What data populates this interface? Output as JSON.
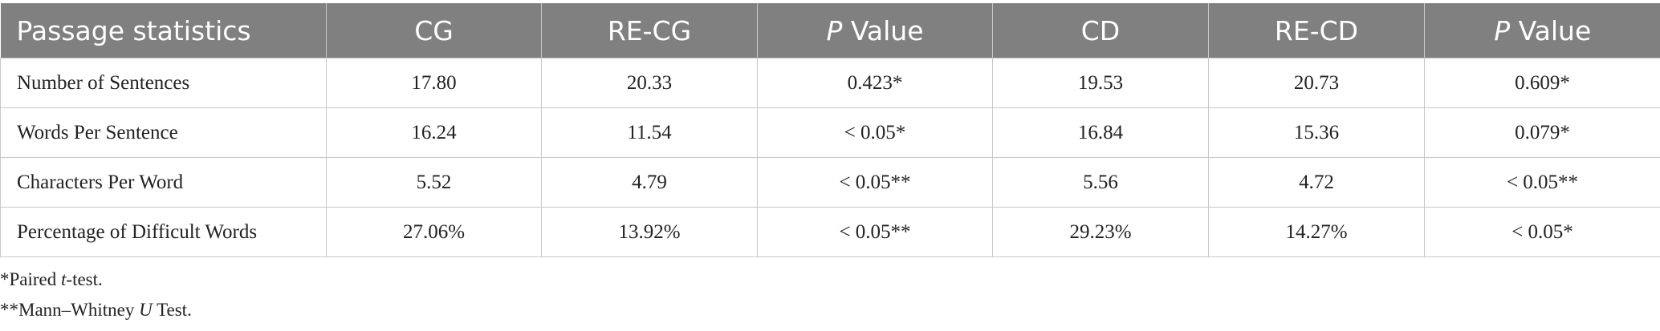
{
  "table": {
    "header": [
      "Passage statistics",
      "CG",
      "RE-CG",
      {
        "em": "P",
        "rest": "Value"
      },
      "CD",
      "RE-CD",
      {
        "em": "P",
        "rest": "Value"
      }
    ],
    "rows": [
      [
        "Number of Sentences",
        "17.80",
        "20.33",
        "0.423*",
        "19.53",
        "20.73",
        "0.609*"
      ],
      [
        "Words Per Sentence",
        "16.24",
        "11.54",
        "< 0.05*",
        "16.84",
        "15.36",
        "0.079*"
      ],
      [
        "Characters Per Word",
        "5.52",
        "4.79",
        "< 0.05**",
        "5.56",
        "4.72",
        "< 0.05**"
      ],
      [
        "Percentage of Difficult Words",
        "27.06%",
        "13.92%",
        "< 0.05**",
        "29.23%",
        "14.27%",
        "< 0.05*"
      ]
    ]
  },
  "footnotes": [
    {
      "pre": "*Paired",
      "em": "t",
      "post": "-test."
    },
    {
      "pre": "**Mann–Whitney",
      "em": "U",
      "post": "Test."
    }
  ]
}
